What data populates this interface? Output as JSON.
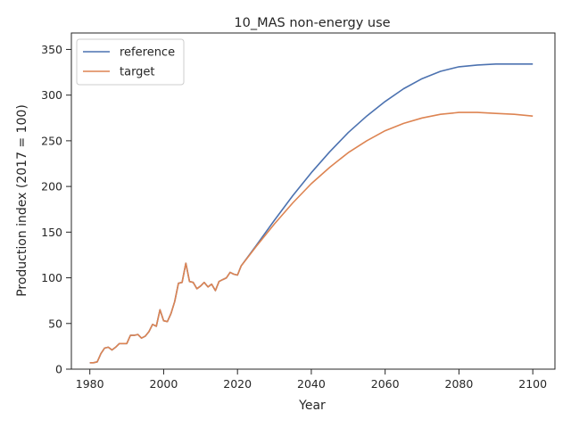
{
  "chart_data": {
    "type": "line",
    "title": "10_MAS non-energy use",
    "xlabel": "Year",
    "ylabel": "Production index (2017 = 100)",
    "xlim": [
      1975,
      2106
    ],
    "ylim": [
      0,
      368
    ],
    "xticks": [
      1980,
      2000,
      2020,
      2040,
      2060,
      2080,
      2100
    ],
    "yticks": [
      0,
      50,
      100,
      150,
      200,
      250,
      300,
      350
    ],
    "grid": false,
    "legend": "top-left",
    "series": [
      {
        "name": "reference",
        "color": "#4c72b0",
        "x": [
          1980,
          1981,
          1982,
          1983,
          1984,
          1985,
          1986,
          1987,
          1988,
          1989,
          1990,
          1991,
          1992,
          1993,
          1994,
          1995,
          1996,
          1997,
          1998,
          1999,
          2000,
          2001,
          2002,
          2003,
          2004,
          2005,
          2006,
          2007,
          2008,
          2009,
          2010,
          2011,
          2012,
          2013,
          2014,
          2015,
          2016,
          2017,
          2018,
          2019,
          2020,
          2021,
          2025,
          2030,
          2035,
          2040,
          2045,
          2050,
          2055,
          2060,
          2065,
          2070,
          2075,
          2080,
          2085,
          2090,
          2095,
          2100
        ],
        "y": [
          7,
          7,
          8,
          17,
          23,
          24,
          21,
          24,
          28,
          28,
          28,
          37,
          37,
          38,
          34,
          36,
          41,
          49,
          47,
          65,
          53,
          52,
          61,
          74,
          94,
          95,
          116,
          96,
          95,
          88,
          91,
          95,
          90,
          93,
          86,
          96,
          98,
          100,
          106,
          104,
          103,
          113,
          135,
          163,
          190,
          215,
          238,
          259,
          277,
          293,
          307,
          318,
          326,
          331,
          333,
          334,
          334,
          334
        ]
      },
      {
        "name": "target",
        "color": "#dd8452",
        "x": [
          1980,
          1981,
          1982,
          1983,
          1984,
          1985,
          1986,
          1987,
          1988,
          1989,
          1990,
          1991,
          1992,
          1993,
          1994,
          1995,
          1996,
          1997,
          1998,
          1999,
          2000,
          2001,
          2002,
          2003,
          2004,
          2005,
          2006,
          2007,
          2008,
          2009,
          2010,
          2011,
          2012,
          2013,
          2014,
          2015,
          2016,
          2017,
          2018,
          2019,
          2020,
          2021,
          2025,
          2030,
          2035,
          2040,
          2045,
          2050,
          2055,
          2060,
          2065,
          2070,
          2075,
          2080,
          2085,
          2090,
          2095,
          2100
        ],
        "y": [
          7,
          7,
          8,
          17,
          23,
          24,
          21,
          24,
          28,
          28,
          28,
          37,
          37,
          38,
          34,
          36,
          41,
          49,
          47,
          65,
          53,
          52,
          61,
          74,
          94,
          95,
          116,
          96,
          95,
          88,
          91,
          95,
          90,
          93,
          86,
          96,
          98,
          100,
          106,
          104,
          103,
          113,
          134,
          159,
          182,
          203,
          221,
          237,
          250,
          261,
          269,
          275,
          279,
          281,
          281,
          280,
          279,
          277
        ]
      }
    ]
  }
}
